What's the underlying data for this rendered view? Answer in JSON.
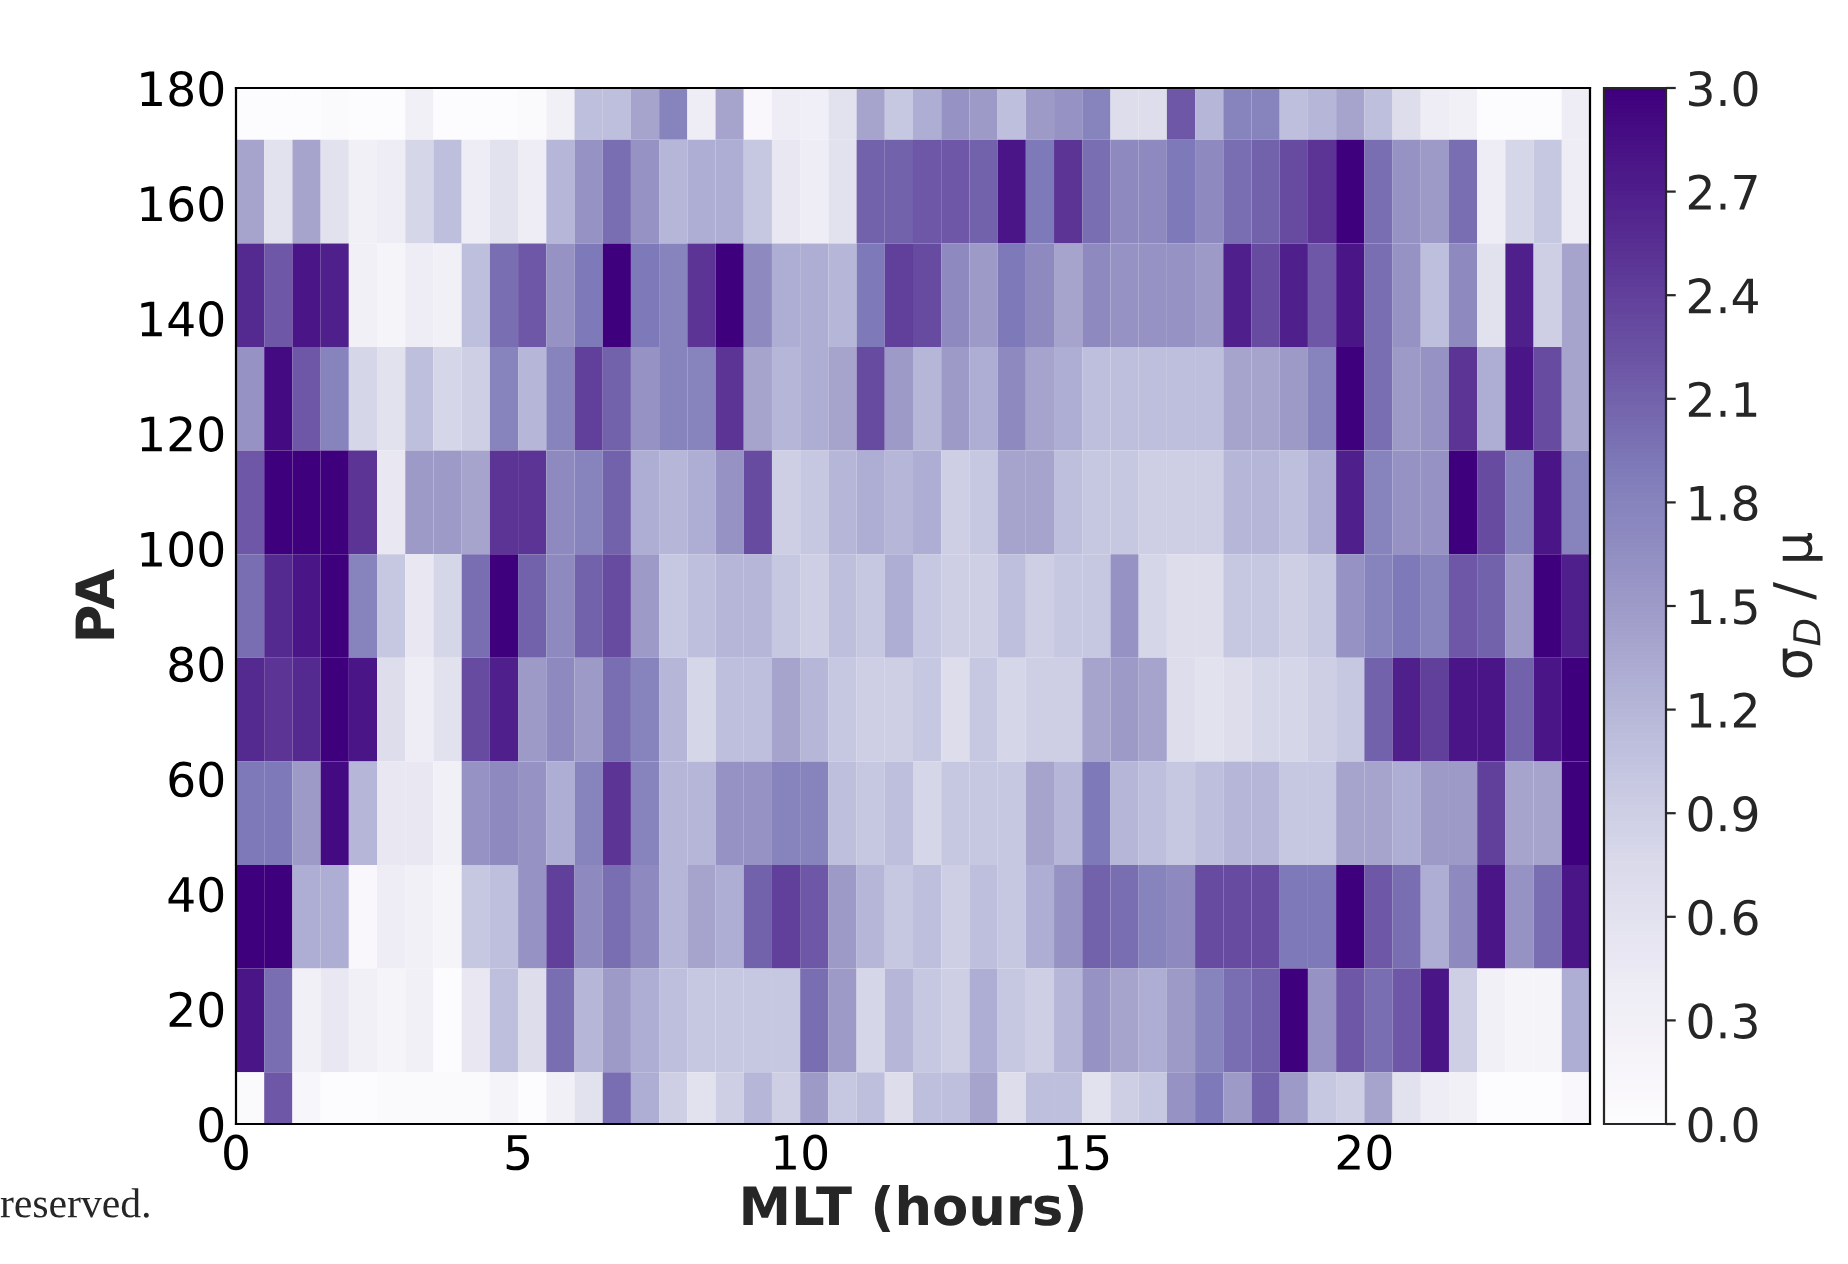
{
  "chart_data": {
    "type": "heatmap",
    "xlabel": "MLT (hours)",
    "ylabel": "PA",
    "clabel": "σ$_{D}$ / μ",
    "x": [
      0.25,
      0.75,
      1.25,
      1.75,
      2.25,
      2.75,
      3.25,
      3.75,
      4.25,
      4.75,
      5.25,
      5.75,
      6.25,
      6.75,
      7.25,
      7.75,
      8.25,
      8.75,
      9.25,
      9.75,
      10.25,
      10.75,
      11.25,
      11.75,
      12.25,
      12.75,
      13.25,
      13.75,
      14.25,
      14.75,
      15.25,
      15.75,
      16.25,
      16.75,
      17.25,
      17.75,
      18.25,
      18.75,
      19.25,
      19.75,
      20.25,
      20.75,
      21.25,
      21.75,
      22.25,
      22.75,
      23.25,
      23.75
    ],
    "y": [
      180,
      162,
      144,
      126,
      108,
      90,
      72,
      54,
      36,
      18,
      0
    ],
    "cells": [
      [
        0.0,
        0.0,
        0.0,
        0.05,
        0.0,
        0.0,
        0.3,
        0.0,
        0.0,
        0.0,
        0.05,
        0.3,
        1.1,
        1.1,
        1.4,
        1.8,
        0.4,
        1.4,
        0.1,
        0.4,
        0.35,
        0.6,
        1.4,
        1.0,
        1.3,
        1.6,
        1.5,
        1.1,
        1.5,
        1.6,
        1.8,
        0.7,
        0.7,
        2.2,
        1.2,
        1.8,
        1.8,
        1.1,
        1.2,
        1.4,
        1.1,
        0.7,
        0.4,
        0.3,
        0.0,
        0.0,
        0.0,
        0.4
      ],
      [
        1.4,
        0.6,
        1.4,
        0.6,
        0.3,
        0.4,
        0.8,
        1.1,
        0.4,
        0.6,
        0.4,
        1.2,
        1.6,
        2.0,
        1.6,
        1.2,
        1.3,
        1.3,
        1.0,
        0.5,
        0.4,
        0.6,
        2.1,
        2.1,
        2.2,
        2.2,
        2.1,
        2.8,
        1.9,
        2.5,
        2.0,
        1.7,
        1.7,
        1.9,
        1.7,
        2.0,
        2.1,
        2.3,
        2.5,
        3.0,
        2.0,
        1.6,
        1.5,
        2.0,
        0.4,
        0.8,
        1.0,
        0.4
      ],
      [
        2.6,
        2.2,
        2.8,
        2.7,
        0.3,
        0.2,
        0.4,
        0.3,
        1.1,
        2.0,
        2.2,
        1.6,
        1.9,
        3.0,
        1.9,
        1.8,
        2.5,
        3.0,
        1.7,
        1.3,
        1.3,
        1.2,
        1.9,
        2.4,
        2.3,
        1.7,
        1.5,
        1.9,
        1.7,
        1.4,
        1.7,
        1.6,
        1.6,
        1.6,
        1.5,
        2.7,
        2.3,
        2.7,
        2.2,
        2.8,
        2.0,
        1.6,
        1.1,
        1.7,
        0.6,
        2.7,
        0.9,
        1.4
      ],
      [
        1.6,
        2.9,
        2.2,
        1.8,
        0.8,
        0.6,
        1.1,
        0.8,
        0.9,
        1.8,
        1.2,
        1.8,
        2.4,
        2.1,
        1.6,
        1.8,
        1.8,
        2.5,
        1.4,
        1.2,
        1.3,
        1.4,
        2.3,
        1.5,
        1.2,
        1.5,
        1.3,
        1.7,
        1.4,
        1.3,
        1.1,
        1.1,
        1.1,
        1.1,
        1.1,
        1.4,
        1.4,
        1.5,
        1.8,
        3.0,
        2.0,
        1.5,
        1.6,
        2.5,
        1.3,
        2.8,
        2.3,
        1.4
      ],
      [
        2.2,
        3.0,
        3.0,
        3.0,
        2.5,
        0.5,
        1.5,
        1.5,
        1.4,
        2.5,
        2.5,
        1.7,
        1.8,
        2.1,
        1.3,
        1.2,
        1.3,
        1.6,
        2.3,
        0.9,
        1.0,
        1.2,
        1.3,
        1.2,
        1.3,
        0.9,
        1.0,
        1.4,
        1.4,
        1.1,
        1.0,
        1.0,
        0.9,
        0.9,
        0.9,
        1.2,
        1.2,
        1.1,
        1.3,
        2.7,
        1.8,
        1.6,
        1.6,
        3.0,
        2.3,
        1.8,
        2.8,
        1.8
      ],
      [
        2.0,
        2.6,
        2.8,
        3.0,
        1.8,
        1.0,
        0.5,
        0.8,
        2.0,
        3.0,
        2.1,
        1.7,
        2.1,
        2.3,
        1.5,
        1.0,
        1.1,
        1.2,
        1.2,
        1.0,
        0.9,
        1.1,
        1.0,
        1.3,
        1.0,
        0.9,
        0.9,
        1.1,
        0.9,
        1.0,
        1.0,
        1.6,
        0.8,
        0.7,
        0.7,
        1.0,
        1.0,
        0.9,
        1.0,
        1.6,
        1.8,
        1.9,
        1.8,
        2.2,
        2.1,
        1.5,
        3.0,
        2.7
      ],
      [
        2.6,
        2.5,
        2.6,
        3.0,
        2.8,
        0.7,
        0.4,
        0.6,
        2.3,
        2.7,
        1.5,
        1.7,
        1.5,
        2.0,
        1.8,
        1.2,
        0.8,
        1.1,
        1.1,
        1.4,
        1.2,
        1.0,
        0.9,
        0.9,
        1.0,
        0.7,
        1.0,
        0.8,
        0.9,
        0.9,
        1.4,
        1.5,
        1.4,
        0.7,
        0.6,
        0.7,
        0.8,
        0.8,
        0.9,
        1.0,
        2.1,
        2.7,
        2.4,
        2.8,
        2.8,
        2.1,
        2.8,
        3.0
      ],
      [
        1.9,
        1.9,
        1.5,
        2.9,
        1.2,
        0.5,
        0.5,
        0.3,
        1.6,
        1.7,
        1.6,
        1.3,
        1.8,
        2.5,
        1.8,
        1.2,
        1.2,
        1.6,
        1.6,
        1.8,
        1.8,
        1.1,
        1.0,
        1.1,
        0.8,
        1.0,
        1.0,
        1.0,
        1.4,
        1.2,
        1.9,
        1.2,
        1.1,
        1.0,
        1.1,
        1.2,
        1.2,
        1.0,
        1.0,
        1.4,
        1.4,
        1.3,
        1.5,
        1.5,
        2.4,
        1.4,
        1.4,
        3.0
      ],
      [
        3.0,
        3.0,
        1.3,
        1.3,
        0.1,
        0.4,
        0.3,
        0.2,
        1.0,
        1.1,
        1.6,
        2.4,
        1.7,
        2.0,
        1.7,
        1.2,
        1.4,
        1.3,
        2.1,
        2.4,
        2.2,
        1.5,
        1.2,
        1.0,
        1.1,
        0.9,
        1.1,
        1.0,
        1.3,
        1.6,
        2.1,
        2.0,
        1.8,
        1.7,
        2.3,
        2.3,
        2.3,
        1.9,
        1.9,
        3.0,
        2.2,
        2.0,
        1.3,
        1.7,
        2.8,
        1.6,
        2.0,
        2.8
      ],
      [
        2.8,
        2.0,
        0.3,
        0.5,
        0.3,
        0.2,
        0.3,
        0.0,
        0.5,
        1.1,
        0.7,
        2.0,
        1.2,
        1.5,
        1.3,
        1.1,
        1.0,
        1.0,
        1.0,
        1.0,
        2.0,
        1.5,
        0.8,
        1.2,
        1.0,
        0.9,
        1.3,
        1.0,
        0.9,
        1.2,
        1.6,
        1.4,
        1.3,
        1.5,
        1.8,
        2.0,
        2.1,
        3.0,
        1.6,
        2.2,
        2.0,
        2.2,
        2.8,
        0.9,
        0.3,
        0.2,
        0.2,
        1.3
      ],
      [
        0.05,
        2.2,
        0.15,
        0.0,
        0.0,
        0.05,
        0.05,
        0.05,
        0.05,
        0.2,
        0.0,
        0.3,
        0.6,
        2.0,
        1.3,
        0.9,
        0.6,
        0.9,
        1.2,
        0.9,
        1.5,
        1.0,
        1.1,
        0.7,
        1.1,
        1.1,
        1.4,
        0.7,
        1.1,
        1.1,
        0.6,
        0.9,
        1.0,
        1.6,
        1.9,
        1.5,
        2.1,
        1.5,
        1.0,
        0.9,
        1.4,
        0.6,
        0.4,
        0.3,
        0.0,
        0.0,
        0.0,
        0.1
      ]
    ],
    "xlim": [
      0,
      24
    ],
    "xticks": [
      0,
      5,
      10,
      15,
      20
    ],
    "ylim": [
      0,
      180
    ],
    "yticks": [
      0,
      20,
      40,
      60,
      80,
      100,
      120,
      140,
      160,
      180
    ],
    "clim": [
      0,
      3
    ],
    "cticks": [
      {
        "value": 0,
        "label": "0.0"
      },
      0.3,
      0.6,
      0.9,
      1.2,
      1.5,
      1.8,
      2.1,
      2.4,
      2.7,
      {
        "value": 3,
        "label": "3.0"
      }
    ],
    "grid": false,
    "annotations": [
      "reserved."
    ]
  }
}
